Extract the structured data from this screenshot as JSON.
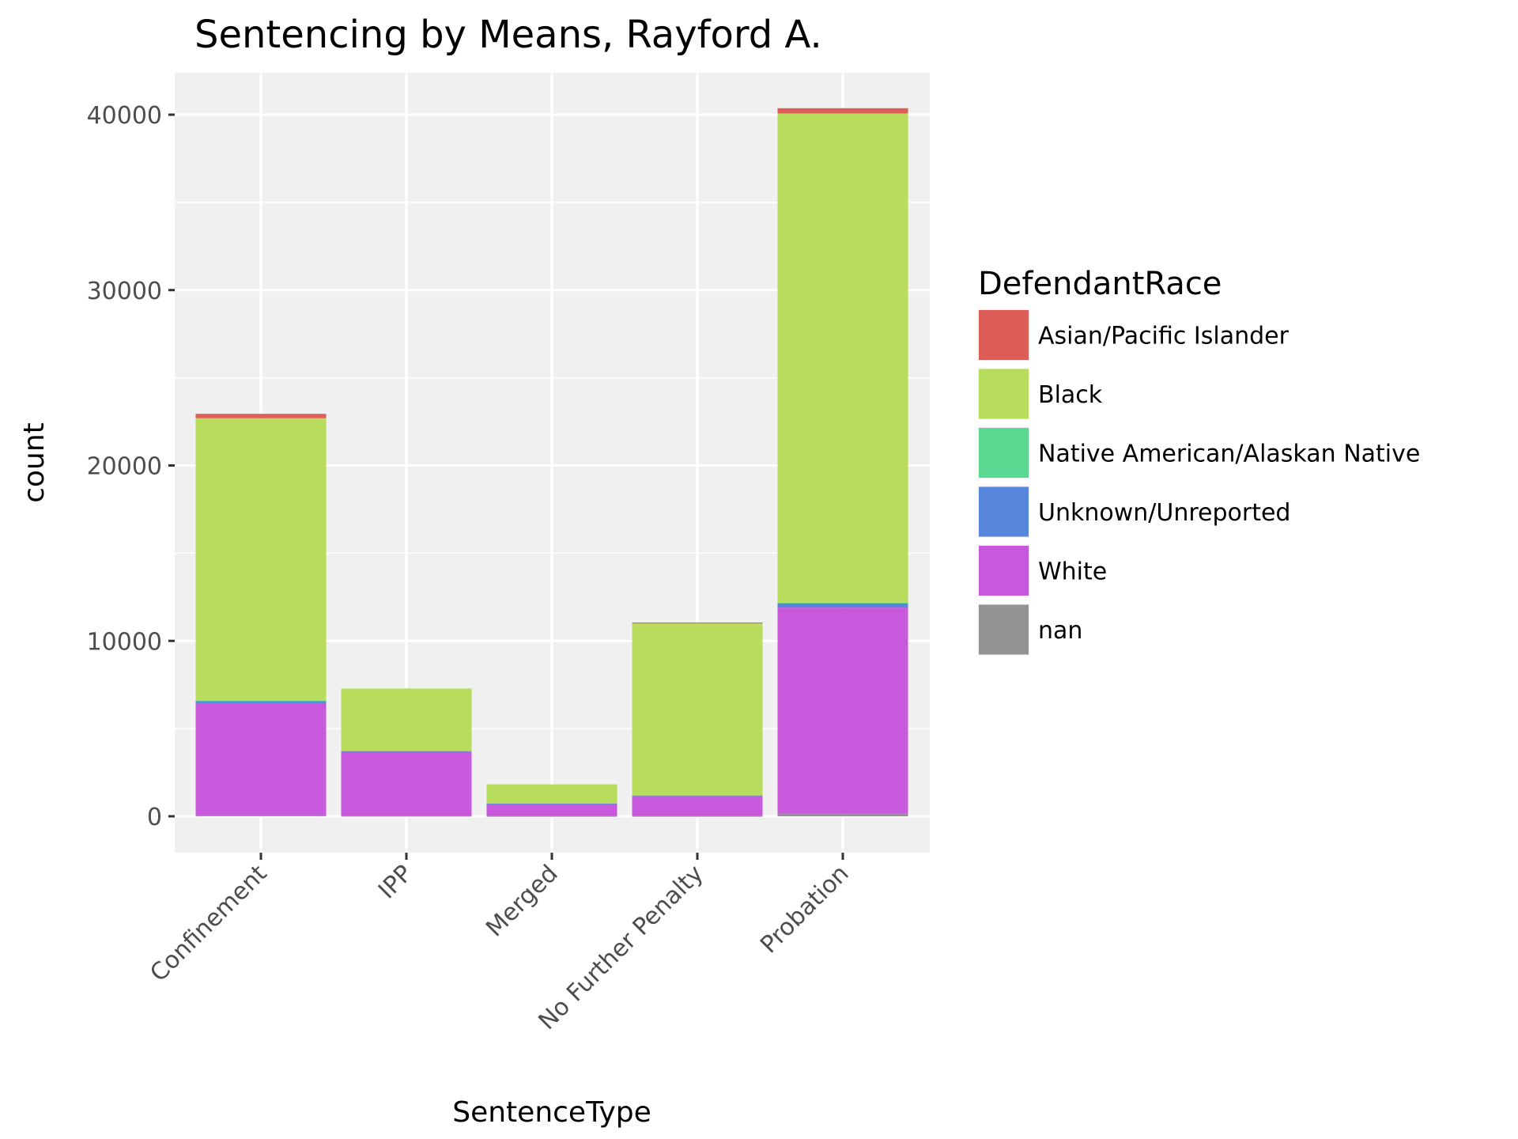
{
  "chart_data": {
    "type": "bar",
    "stacked": true,
    "title": "Sentencing by Means, Rayford A.",
    "xlabel": "SentenceType",
    "ylabel": "count",
    "categories": [
      "Confinement",
      "IPP",
      "Merged",
      "No Further Penalty",
      "Probation"
    ],
    "ylim": [
      -1800,
      42000
    ],
    "yticks": [
      0,
      10000,
      20000,
      30000,
      40000
    ],
    "ytick_labels": [
      "0",
      "10000",
      "20000",
      "30000",
      "40000"
    ],
    "grid": true,
    "legend_position": "right",
    "legend_title": "DefendantRace",
    "stack_order_bottom_to_top": [
      "nan",
      "White",
      "Unknown/Unreported",
      "Native American/Alaskan Native",
      "Black",
      "Asian/Pacific Islander"
    ],
    "series": [
      {
        "name": "Asian/Pacific Islander",
        "color": "#dc5e57",
        "values": [
          250,
          0,
          0,
          50,
          300
        ]
      },
      {
        "name": "Black",
        "color": "#b8dc5c",
        "values": [
          16100,
          3550,
          1100,
          9800,
          27900
        ]
      },
      {
        "name": "Native American/Alaskan Native",
        "color": "#5ad891",
        "values": [
          15,
          5,
          0,
          5,
          20
        ]
      },
      {
        "name": "Unknown/Unreported",
        "color": "#5786dc",
        "values": [
          130,
          60,
          10,
          30,
          250
        ]
      },
      {
        "name": "White",
        "color": "#c858dc",
        "values": [
          6400,
          3650,
          700,
          1150,
          11750
        ]
      },
      {
        "name": "nan",
        "color": "#939393",
        "values": [
          50,
          20,
          10,
          10,
          150
        ]
      }
    ]
  }
}
